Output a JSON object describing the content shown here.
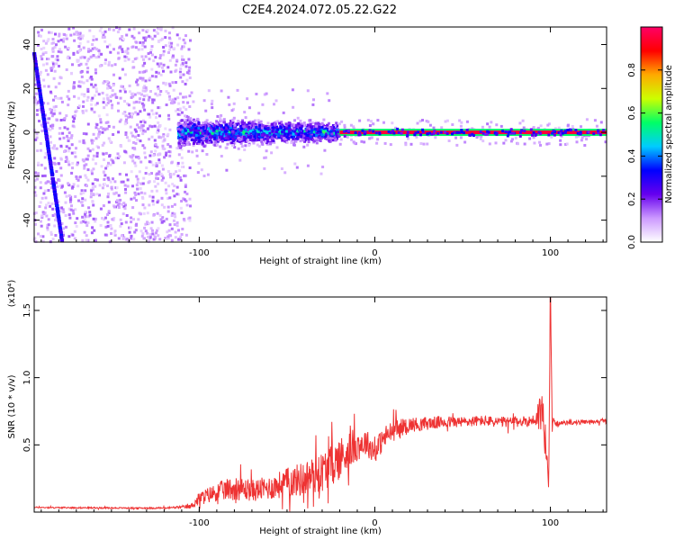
{
  "title": "C2E4.2024.072.05.22.G22",
  "colors": {
    "snr_line": "#ee3333",
    "spectrogram_background": "#ffffff",
    "colormap": [
      "#ffffff",
      "#cc99ff",
      "#6600ee",
      "#0000ff",
      "#00ccff",
      "#00ff66",
      "#ccff00",
      "#ffaa00",
      "#ff0000",
      "#ff0066"
    ]
  },
  "chart_data": [
    {
      "type": "heatmap",
      "xlabel": "Height of straight line (km)",
      "ylabel": "Frequency (Hz)",
      "xlim": [
        -194,
        132
      ],
      "ylim": [
        -50,
        48
      ],
      "xticks": [
        "-100",
        "0",
        "100"
      ],
      "xtick_values": [
        -100,
        0,
        100
      ],
      "yticks": [
        "-40",
        "-20",
        "0",
        "20",
        "40"
      ],
      "ytick_values": [
        -40,
        -20,
        0,
        20,
        40
      ],
      "colorbar": {
        "label": "Normalized spectral amplitude",
        "range": [
          0,
          1
        ],
        "ticks": [
          "0.0",
          "0.2",
          "0.4",
          "0.6",
          "0.8"
        ],
        "tick_values": [
          0,
          0.2,
          0.4,
          0.6,
          0.8
        ]
      },
      "features": [
        {
          "desc": "strong carrier line",
          "x_range": [
            -20,
            132
          ],
          "frequency": 0,
          "amplitude": 0.95
        },
        {
          "desc": "broadened carrier band",
          "x_range": [
            -112,
            -20
          ],
          "frequency_spread": 6,
          "amplitude": 0.4
        },
        {
          "desc": "diagonal interference line",
          "x_from": -194,
          "y_from": 36,
          "x_to": -178,
          "y_to": -50,
          "amplitude": 0.25
        },
        {
          "desc": "diffuse noise",
          "x_range": [
            -194,
            -105
          ],
          "amplitude": 0.1
        }
      ]
    },
    {
      "type": "line",
      "xlabel": "Height of straight line (km)",
      "ylabel": "SNR (10 * v/v)",
      "yscale_label": "(x10⁴)",
      "xlim": [
        -194,
        132
      ],
      "ylim": [
        0,
        16000
      ],
      "xticks": [
        "-100",
        "0",
        "100"
      ],
      "xtick_values": [
        -100,
        0,
        100
      ],
      "yticks": [
        "0.5",
        "1.0",
        "1.5"
      ],
      "ytick_values": [
        5000,
        10000,
        15000
      ],
      "series": [
        {
          "x": [
            -194,
            -180,
            -160,
            -140,
            -120,
            -105,
            -100,
            -90,
            -80,
            -70,
            -60,
            -50,
            -40,
            -30,
            -20,
            -15,
            -10,
            -5,
            0,
            5,
            10,
            15,
            20,
            30,
            40,
            50,
            60,
            70,
            80,
            90,
            93,
            95,
            97,
            98,
            99,
            100,
            101,
            102,
            103,
            105,
            110,
            120,
            132
          ],
          "values": [
            350,
            330,
            320,
            300,
            300,
            400,
            1000,
            1500,
            1800,
            1600,
            1800,
            2200,
            2500,
            3000,
            4000,
            4600,
            5000,
            5200,
            4500,
            5500,
            6000,
            6300,
            6500,
            6600,
            6700,
            6700,
            6800,
            6700,
            6700,
            6800,
            7200,
            7600,
            6000,
            3500,
            1500,
            16000,
            7000,
            6700,
            6600,
            6600,
            6650,
            6700,
            6800
          ],
          "noise": [
            50,
            50,
            50,
            50,
            60,
            150,
            500,
            700,
            900,
            800,
            900,
            1100,
            1300,
            1500,
            1600,
            1500,
            1200,
            1000,
            900,
            900,
            800,
            650,
            550,
            500,
            450,
            400,
            400,
            400,
            400,
            400,
            1200,
            1800,
            1800,
            1200,
            600,
            0,
            500,
            250,
            200,
            150,
            150,
            150,
            150
          ]
        }
      ]
    }
  ]
}
